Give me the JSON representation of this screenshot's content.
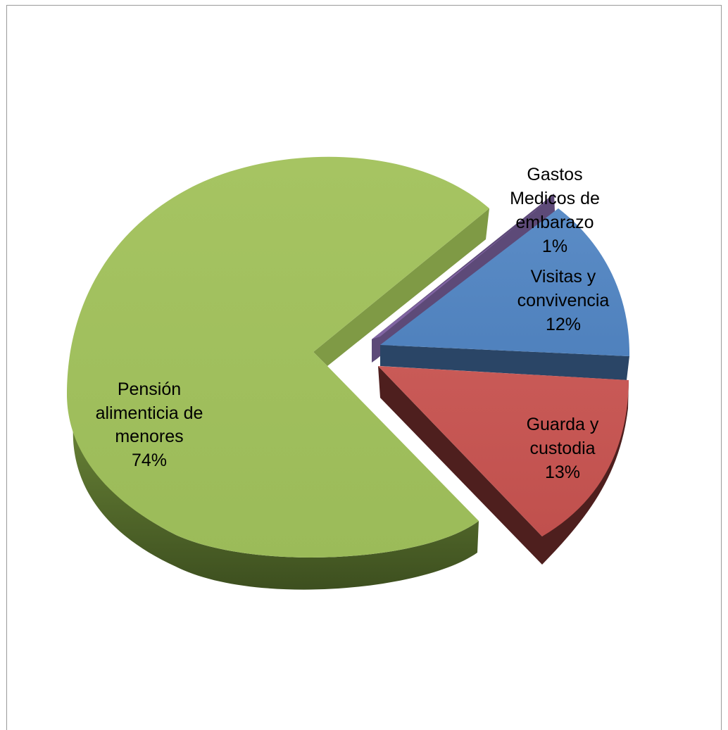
{
  "chart_data": {
    "type": "pie",
    "title": "",
    "style": "3d-exploded",
    "slices": [
      {
        "label_lines": [
          "Pensión",
          "alimenticia de",
          "menores"
        ],
        "percent_label": "74%",
        "value": 74,
        "color": "#9bbb59"
      },
      {
        "label_lines": [
          "Gastos",
          "Medicos de",
          "embarazo"
        ],
        "percent_label": "1%",
        "value": 1,
        "color": "#8064a2"
      },
      {
        "label_lines": [
          "Visitas y",
          "convivencia"
        ],
        "percent_label": "12%",
        "value": 12,
        "color": "#4f81bd"
      },
      {
        "label_lines": [
          "Guarda y",
          "custodia"
        ],
        "percent_label": "13%",
        "value": 13,
        "color": "#c0504d"
      }
    ]
  }
}
